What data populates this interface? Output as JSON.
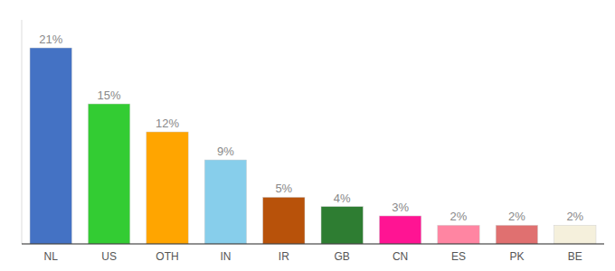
{
  "chart_data": {
    "type": "bar",
    "categories": [
      "NL",
      "US",
      "OTH",
      "IN",
      "IR",
      "GB",
      "CN",
      "ES",
      "PK",
      "BE"
    ],
    "values": [
      21,
      15,
      12,
      9,
      5,
      4,
      3,
      2,
      2,
      2
    ],
    "value_labels": [
      "21%",
      "15%",
      "12%",
      "9%",
      "5%",
      "4%",
      "3%",
      "2%",
      "2%",
      "2%"
    ],
    "colors": [
      "#4472C4",
      "#33CC33",
      "#FFA500",
      "#87CEEB",
      "#B8520A",
      "#2E7D32",
      "#FF1493",
      "#FF85A2",
      "#E07070",
      "#F5F0DC"
    ],
    "ylim": [
      0,
      24
    ],
    "grid": false,
    "data_labels": true,
    "tick_labels": "x"
  }
}
